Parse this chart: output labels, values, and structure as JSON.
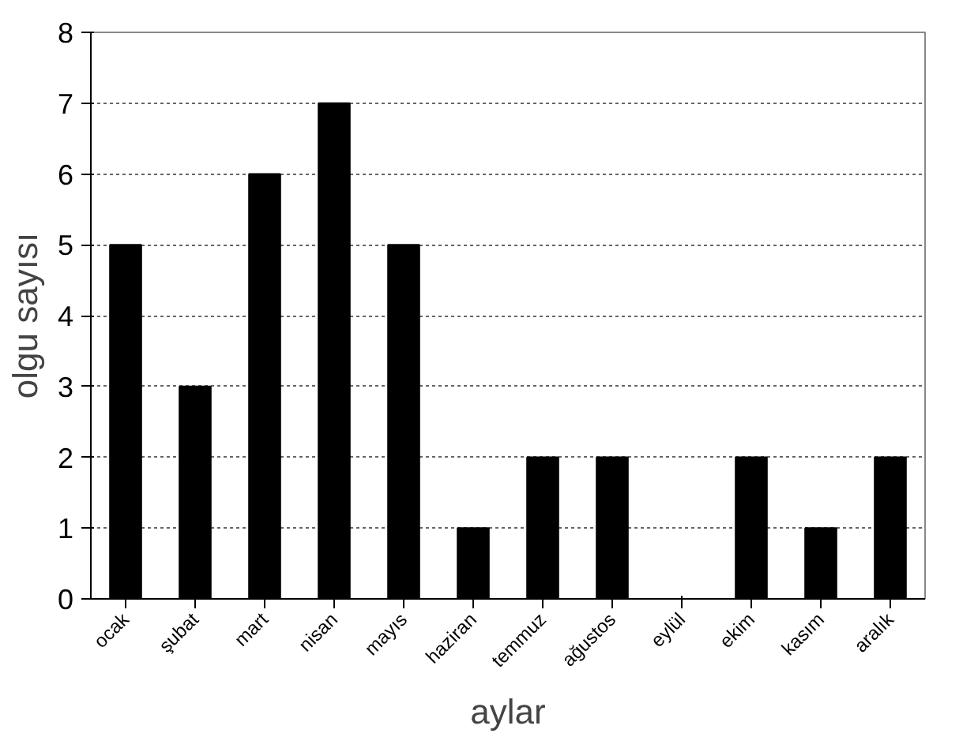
{
  "chart_data": {
    "type": "bar",
    "categories": [
      "ocak",
      "şubat",
      "mart",
      "nisan",
      "mayıs",
      "haziran",
      "temmuz",
      "ağustos",
      "eylül",
      "ekim",
      "kasım",
      "aralık"
    ],
    "values": [
      5,
      3,
      6,
      7,
      5,
      1,
      2,
      2,
      0,
      2,
      1,
      2
    ],
    "color": "#000000",
    "xlabel": "aylar",
    "ylabel": "olgu sayısı",
    "ylim": [
      0,
      8
    ],
    "yticks": [
      0,
      1,
      2,
      3,
      4,
      5,
      6,
      7,
      8
    ],
    "grid": "y"
  }
}
